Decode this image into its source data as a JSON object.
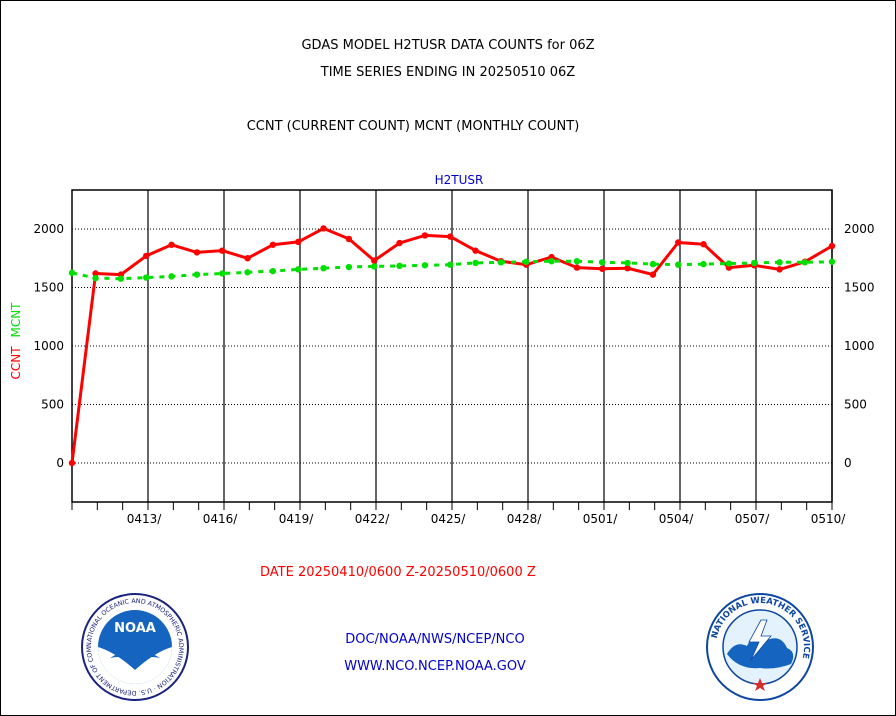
{
  "titles": {
    "line1": "GDAS MODEL H2TUSR DATA COUNTS for 06Z",
    "line2": "TIME SERIES ENDING IN 20250510 06Z",
    "line3": "CCNT (CURRENT COUNT) MCNT (MONTHLY COUNT)"
  },
  "date_range": "DATE 20250410/0600 Z-20250510/0600 Z",
  "footer": {
    "line1": "DOC/NOAA/NWS/NCEP/NCO",
    "line2": "WWW.NCO.NCEP.NOAA.GOV"
  },
  "logos": {
    "noaa_text": "NOAA",
    "noaa_ring": "NATIONAL OCEANIC AND ATMOSPHERIC ADMINISTRATION · U.S. DEPARTMENT OF COMMERCE",
    "nws_ring": "NATIONAL WEATHER SERVICE"
  },
  "colors": {
    "ccnt": "#ff0000",
    "mcnt": "#00e000",
    "inner_title": "#0000cc"
  },
  "chart_data": {
    "type": "line",
    "title": "H2TUSR",
    "ylabel_left_ccnt": "CCNT",
    "ylabel_left_mcnt": "MCNT",
    "ylim": [
      -320,
      2320
    ],
    "yticks": [
      0,
      500,
      1000,
      1500,
      2000
    ],
    "xlim": [
      0,
      30
    ],
    "x_tick_positions": [
      3,
      6,
      9,
      12,
      15,
      18,
      21,
      24,
      27,
      30
    ],
    "x_tick_labels": [
      "0413/",
      "0416/",
      "0419/",
      "0422/",
      "0425/",
      "0428/",
      "0501/",
      "0504/",
      "0507/",
      "0510/"
    ],
    "grid": true,
    "series": [
      {
        "name": "CCNT",
        "x": [
          0,
          0.93,
          1.93,
          2.93,
          3.93,
          4.93,
          5.93,
          6.93,
          7.93,
          8.93,
          9.93,
          10.93,
          11.93,
          12.93,
          13.93,
          14.93,
          15.93,
          16.93,
          17.93,
          18.93,
          19.93,
          20.93,
          21.93,
          22.93,
          23.93,
          24.93,
          25.93,
          26.93,
          27.93,
          28.93,
          30
        ],
        "values": [
          0,
          1620,
          1610,
          1770,
          1865,
          1800,
          1815,
          1750,
          1865,
          1890,
          2005,
          1915,
          1730,
          1880,
          1945,
          1935,
          1815,
          1725,
          1695,
          1760,
          1670,
          1660,
          1665,
          1610,
          1885,
          1870,
          1670,
          1690,
          1655,
          1720,
          1855
        ]
      },
      {
        "name": "MCNT",
        "x": [
          0,
          0.93,
          1.93,
          2.93,
          3.93,
          4.93,
          5.93,
          6.93,
          7.93,
          8.93,
          9.93,
          10.93,
          11.93,
          12.93,
          13.93,
          14.93,
          15.93,
          16.93,
          17.93,
          18.93,
          19.93,
          20.93,
          21.93,
          22.93,
          23.93,
          24.93,
          25.93,
          26.93,
          27.93,
          28.93,
          30
        ],
        "values": [
          1625,
          1580,
          1575,
          1585,
          1595,
          1610,
          1620,
          1630,
          1640,
          1655,
          1665,
          1675,
          1680,
          1685,
          1690,
          1695,
          1710,
          1715,
          1720,
          1725,
          1725,
          1715,
          1710,
          1700,
          1695,
          1700,
          1705,
          1710,
          1715,
          1715,
          1720
        ]
      }
    ]
  }
}
